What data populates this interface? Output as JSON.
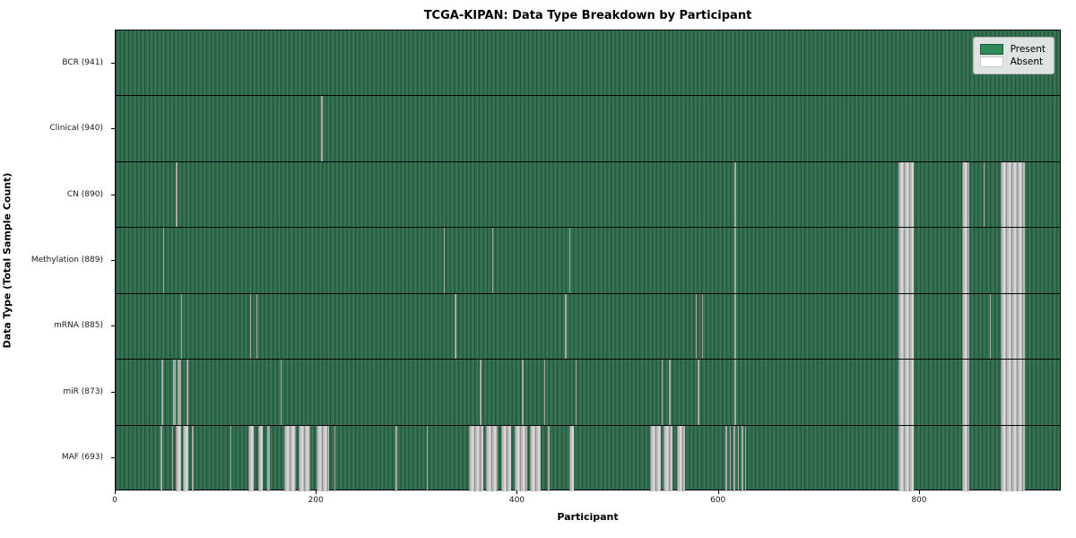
{
  "title": "TCGA-KIPAN: Data Type Breakdown by Participant",
  "xlabel": "Participant",
  "ylabel": "Data Type (Total Sample Count)",
  "legend": {
    "present_label": "Present",
    "absent_label": "Absent"
  },
  "colors": {
    "present_green": "#2e8b57",
    "present_fill_dark": "#2f6b4c",
    "absent_gray": "#bdbdbd",
    "legend_bg": "#f2f2f2",
    "axis_black": "#000000"
  },
  "chart_data": {
    "type": "heatmap",
    "title": "TCGA-KIPAN: Data Type Breakdown by Participant",
    "xlabel": "Participant",
    "ylabel": "Data Type (Total Sample Count)",
    "legend_entries": [
      "Present",
      "Absent"
    ],
    "x_min": 0,
    "x_max": 941,
    "x_ticks": [
      0,
      200,
      400,
      600,
      800
    ],
    "total_participants": 941,
    "rows": [
      {
        "label": "BCR (941)",
        "data_type": "BCR",
        "sample_count": 941,
        "absent_ranges": []
      },
      {
        "label": "Clinical (940)",
        "data_type": "Clinical",
        "sample_count": 940,
        "absent_ranges": [
          [
            205,
            206
          ]
        ]
      },
      {
        "label": "CN (890)",
        "data_type": "CN",
        "sample_count": 890,
        "absent_ranges": [
          [
            60,
            61
          ],
          [
            617,
            618
          ],
          [
            780,
            795
          ],
          [
            844,
            851
          ],
          [
            865,
            866
          ],
          [
            882,
            906
          ]
        ]
      },
      {
        "label": "Methylation (889)",
        "data_type": "Methylation",
        "sample_count": 889,
        "absent_ranges": [
          [
            47,
            48
          ],
          [
            327,
            328
          ],
          [
            375,
            376
          ],
          [
            452,
            453
          ],
          [
            617,
            618
          ],
          [
            780,
            795
          ],
          [
            844,
            851
          ],
          [
            882,
            906
          ]
        ]
      },
      {
        "label": "mRNA (885)",
        "data_type": "mRNA",
        "sample_count": 885,
        "absent_ranges": [
          [
            65,
            66
          ],
          [
            134,
            135
          ],
          [
            140,
            141
          ],
          [
            338,
            339
          ],
          [
            448,
            449
          ],
          [
            578,
            579
          ],
          [
            584,
            585
          ],
          [
            617,
            618
          ],
          [
            780,
            795
          ],
          [
            844,
            851
          ],
          [
            871,
            872
          ],
          [
            882,
            906
          ]
        ]
      },
      {
        "label": "miR (873)",
        "data_type": "miR",
        "sample_count": 873,
        "absent_ranges": [
          [
            46,
            47
          ],
          [
            57,
            60
          ],
          [
            62,
            65
          ],
          [
            71,
            72
          ],
          [
            164,
            165
          ],
          [
            363,
            364
          ],
          [
            405,
            406
          ],
          [
            427,
            428
          ],
          [
            458,
            459
          ],
          [
            544,
            545
          ],
          [
            551,
            553
          ],
          [
            580,
            581
          ],
          [
            617,
            618
          ],
          [
            780,
            795
          ],
          [
            844,
            851
          ],
          [
            882,
            906
          ]
        ]
      },
      {
        "label": "MAF (693)",
        "data_type": "MAF",
        "sample_count": 693,
        "absent_ranges": [
          [
            45,
            46
          ],
          [
            56,
            57
          ],
          [
            60,
            65
          ],
          [
            67,
            72
          ],
          [
            76,
            77
          ],
          [
            114,
            115
          ],
          [
            132,
            138
          ],
          [
            142,
            147
          ],
          [
            151,
            154
          ],
          [
            168,
            180
          ],
          [
            182,
            194
          ],
          [
            200,
            213
          ],
          [
            218,
            219
          ],
          [
            279,
            281
          ],
          [
            310,
            311
          ],
          [
            352,
            366
          ],
          [
            369,
            381
          ],
          [
            384,
            394
          ],
          [
            398,
            410
          ],
          [
            413,
            424
          ],
          [
            431,
            432
          ],
          [
            452,
            457
          ],
          [
            533,
            543
          ],
          [
            546,
            555
          ],
          [
            559,
            567
          ],
          [
            608,
            609
          ],
          [
            612,
            613
          ],
          [
            616,
            617
          ],
          [
            620,
            621
          ],
          [
            624,
            625
          ],
          [
            627,
            628
          ],
          [
            780,
            795
          ],
          [
            844,
            851
          ],
          [
            882,
            906
          ]
        ]
      }
    ]
  }
}
